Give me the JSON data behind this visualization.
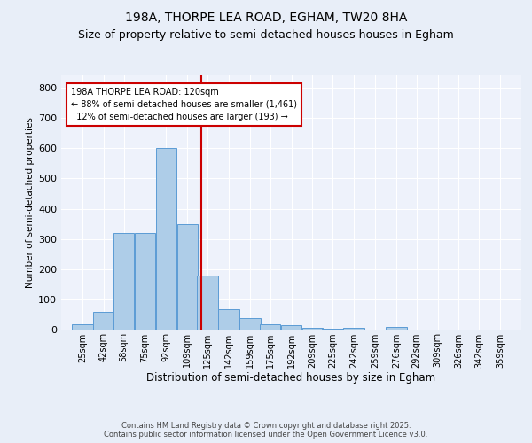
{
  "title1": "198A, THORPE LEA ROAD, EGHAM, TW20 8HA",
  "title2": "Size of property relative to semi-detached houses houses in Egham",
  "xlabel": "Distribution of semi-detached houses by size in Egham",
  "ylabel": "Number of semi-detached properties",
  "bar_centers": [
    25,
    42,
    58,
    75,
    92,
    109,
    125,
    142,
    159,
    175,
    192,
    209,
    225,
    242,
    259,
    276,
    292,
    309,
    326,
    342,
    359
  ],
  "bar_heights": [
    20,
    60,
    320,
    320,
    600,
    350,
    180,
    70,
    40,
    18,
    15,
    6,
    5,
    8,
    0,
    10,
    0,
    0,
    0,
    0,
    0
  ],
  "bin_width": 17,
  "bar_color": "#aecde8",
  "bar_edge_color": "#5b9bd5",
  "vline_x": 120,
  "vline_color": "#cc0000",
  "annotation_text": "198A THORPE LEA ROAD: 120sqm\n← 88% of semi-detached houses are smaller (1,461)\n  12% of semi-detached houses are larger (193) →",
  "annotation_box_color": "#cc0000",
  "ylim": [
    0,
    840
  ],
  "yticks": [
    0,
    100,
    200,
    300,
    400,
    500,
    600,
    700,
    800
  ],
  "tick_labels": [
    "25sqm",
    "42sqm",
    "58sqm",
    "75sqm",
    "92sqm",
    "109sqm",
    "125sqm",
    "142sqm",
    "159sqm",
    "175sqm",
    "192sqm",
    "209sqm",
    "225sqm",
    "242sqm",
    "259sqm",
    "276sqm",
    "292sqm",
    "309sqm",
    "326sqm",
    "342sqm",
    "359sqm"
  ],
  "bg_color": "#e8eef8",
  "plot_bg_color": "#eef2fb",
  "footer": "Contains HM Land Registry data © Crown copyright and database right 2025.\nContains public sector information licensed under the Open Government Licence v3.0.",
  "title_fontsize": 10,
  "subtitle_fontsize": 9,
  "xlim": [
    8,
    376
  ]
}
